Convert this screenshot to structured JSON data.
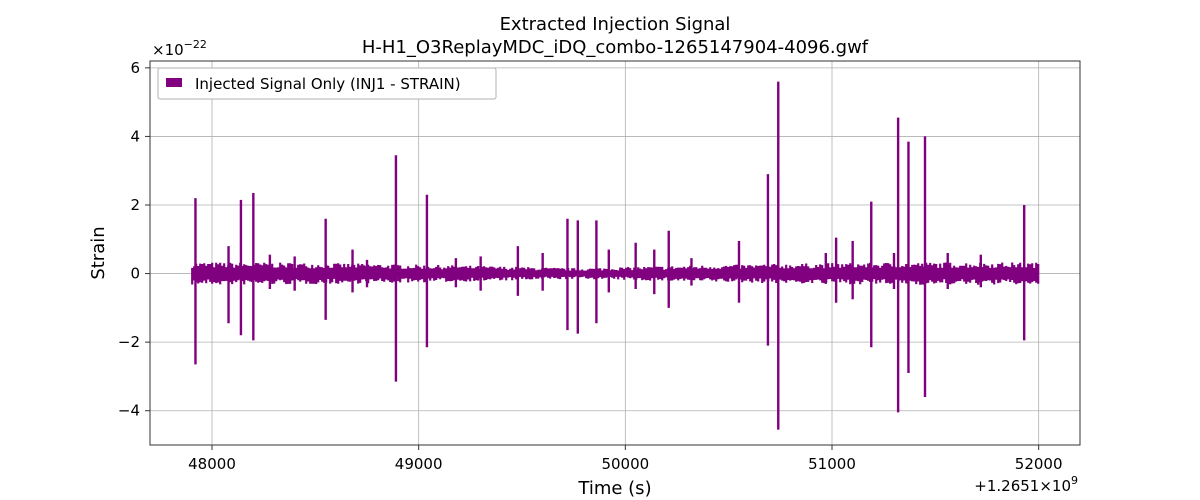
{
  "chart_data": {
    "type": "line",
    "title_line1": "Extracted Injection Signal",
    "title_line2": "H-H1_O3ReplayMDC_iDQ_combo-1265147904-4096.gwf",
    "xlabel": "Time (s)",
    "ylabel": "Strain",
    "x_offset_label": "+1.2651×10",
    "x_offset_exp": "9",
    "y_scale_label": "×10",
    "y_scale_exp": "−22",
    "xlim": [
      47700,
      52200
    ],
    "ylim": [
      -5.0,
      6.2
    ],
    "x_ticks": [
      48000,
      49000,
      50000,
      51000,
      52000
    ],
    "x_tick_labels": [
      "48000",
      "49000",
      "50000",
      "51000",
      "52000"
    ],
    "y_ticks": [
      -4,
      -2,
      0,
      2,
      4,
      6
    ],
    "y_tick_labels": [
      "−4",
      "−2",
      "0",
      "2",
      "4",
      "6"
    ],
    "grid": true,
    "legend": {
      "placement": "top-left",
      "label": "Injected Signal Only (INJ1 - STRAIN)"
    },
    "color": "#800080",
    "x_range": [
      47904,
      52000
    ],
    "noise_envelope": {
      "max": 0.35,
      "min": -0.35
    },
    "series": [
      {
        "name": "Injected Signal Only (INJ1 - STRAIN)",
        "spikes": [
          {
            "x": 47920,
            "hi": 2.2,
            "lo": -2.65
          },
          {
            "x": 48080,
            "hi": 0.8,
            "lo": -1.45
          },
          {
            "x": 48140,
            "hi": 2.15,
            "lo": -1.8
          },
          {
            "x": 48200,
            "hi": 2.35,
            "lo": -1.95
          },
          {
            "x": 48280,
            "hi": 0.55,
            "lo": -0.45
          },
          {
            "x": 48400,
            "hi": 0.5,
            "lo": -0.5
          },
          {
            "x": 48550,
            "hi": 1.6,
            "lo": -1.35
          },
          {
            "x": 48680,
            "hi": 0.7,
            "lo": -0.55
          },
          {
            "x": 48750,
            "hi": 0.4,
            "lo": -0.4
          },
          {
            "x": 48890,
            "hi": 3.45,
            "lo": -3.15
          },
          {
            "x": 49040,
            "hi": 2.3,
            "lo": -2.15
          },
          {
            "x": 49180,
            "hi": 0.45,
            "lo": -0.4
          },
          {
            "x": 49300,
            "hi": 0.5,
            "lo": -0.5
          },
          {
            "x": 49480,
            "hi": 0.8,
            "lo": -0.65
          },
          {
            "x": 49600,
            "hi": 0.6,
            "lo": -0.5
          },
          {
            "x": 49720,
            "hi": 1.6,
            "lo": -1.65
          },
          {
            "x": 49770,
            "hi": 1.55,
            "lo": -1.75
          },
          {
            "x": 49860,
            "hi": 1.55,
            "lo": -1.45
          },
          {
            "x": 49920,
            "hi": 0.7,
            "lo": -0.55
          },
          {
            "x": 50050,
            "hi": 0.9,
            "lo": -0.45
          },
          {
            "x": 50140,
            "hi": 0.7,
            "lo": -0.6
          },
          {
            "x": 50210,
            "hi": 1.25,
            "lo": -1.0
          },
          {
            "x": 50320,
            "hi": 0.45,
            "lo": -0.35
          },
          {
            "x": 50550,
            "hi": 0.95,
            "lo": -0.85
          },
          {
            "x": 50690,
            "hi": 2.9,
            "lo": -2.1
          },
          {
            "x": 50740,
            "hi": 5.6,
            "lo": -4.55
          },
          {
            "x": 50970,
            "hi": 0.6,
            "lo": -0.3
          },
          {
            "x": 51020,
            "hi": 1.05,
            "lo": -0.85
          },
          {
            "x": 51100,
            "hi": 0.95,
            "lo": -0.75
          },
          {
            "x": 51190,
            "hi": 2.1,
            "lo": -2.15
          },
          {
            "x": 51300,
            "hi": 0.6,
            "lo": -0.45
          },
          {
            "x": 51320,
            "hi": 4.55,
            "lo": -4.05
          },
          {
            "x": 51370,
            "hi": 3.85,
            "lo": -2.9
          },
          {
            "x": 51450,
            "hi": 4.0,
            "lo": -3.6
          },
          {
            "x": 51560,
            "hi": 0.6,
            "lo": -0.45
          },
          {
            "x": 51720,
            "hi": 0.55,
            "lo": -0.4
          },
          {
            "x": 51930,
            "hi": 2.0,
            "lo": -1.95
          }
        ]
      }
    ]
  }
}
